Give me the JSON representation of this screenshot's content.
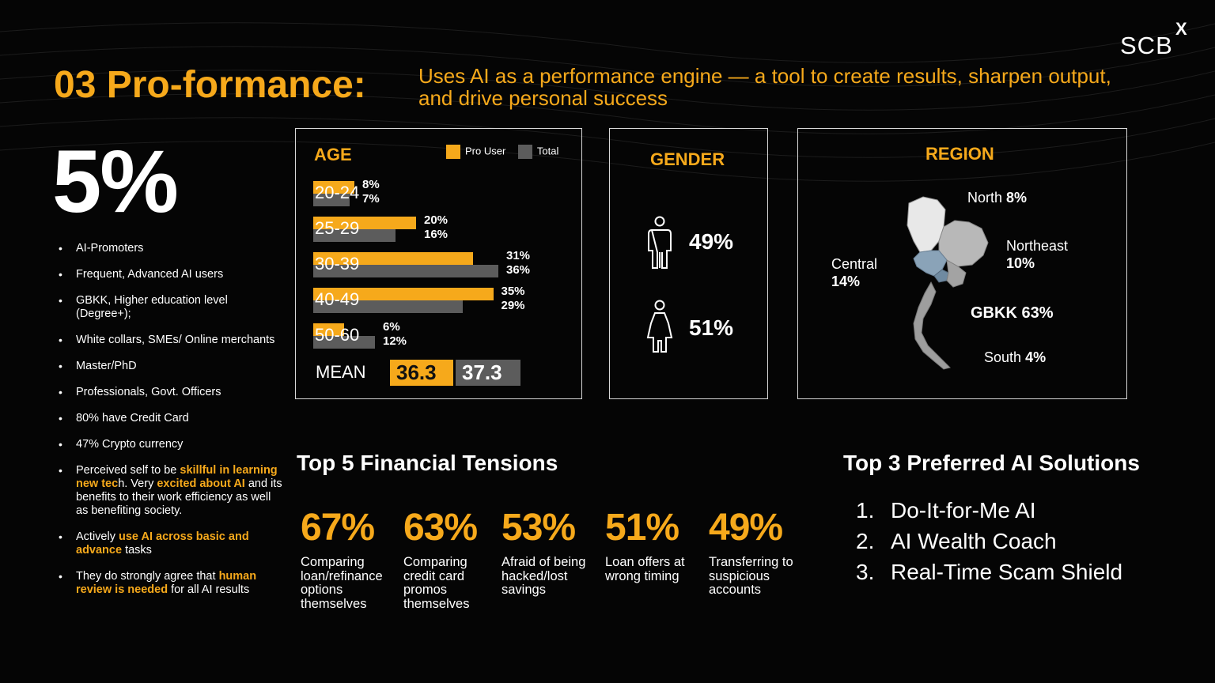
{
  "brand": {
    "logo_text": "SCB",
    "logo_mark": "X"
  },
  "header": {
    "title": "03 Pro-formance:",
    "subtitle": "Uses AI as a performance engine — a tool to create results, sharpen output, and drive personal success"
  },
  "share": "5%",
  "profile": {
    "bullets": [
      {
        "segments": [
          {
            "text": "AI-Promoters",
            "hl": false
          }
        ]
      },
      {
        "segments": [
          {
            "text": "Frequent, Advanced AI users",
            "hl": false
          }
        ]
      },
      {
        "segments": [
          {
            "text": "GBKK, Higher education level (Degree+);",
            "hl": false
          }
        ]
      },
      {
        "segments": [
          {
            "text": "White collars, SMEs/ Online merchants",
            "hl": false
          }
        ]
      },
      {
        "segments": [
          {
            "text": "Master/PhD",
            "hl": false
          }
        ]
      },
      {
        "segments": [
          {
            "text": "Professionals, Govt. Officers",
            "hl": false
          }
        ]
      },
      {
        "segments": [
          {
            "text": "80% have Credit Card",
            "hl": false
          }
        ]
      },
      {
        "segments": [
          {
            "text": "47% Crypto currency",
            "hl": false
          }
        ]
      },
      {
        "segments": [
          {
            "text": "Perceived self to be ",
            "hl": false
          },
          {
            "text": "skillful in learning new tec",
            "hl": true
          },
          {
            "text": "h. Very ",
            "hl": false
          },
          {
            "text": "excited about AI",
            "hl": true
          },
          {
            "text": " and its benefits to their work efficiency as well as benefiting society.",
            "hl": false
          }
        ]
      },
      {
        "segments": [
          {
            "text": "Actively ",
            "hl": false
          },
          {
            "text": "use AI across basic and advance",
            "hl": true
          },
          {
            "text": " tasks",
            "hl": false
          }
        ]
      },
      {
        "segments": [
          {
            "text": "They do strongly agree that ",
            "hl": false
          },
          {
            "text": "human review is needed",
            "hl": true
          },
          {
            "text": " for all AI results",
            "hl": false
          }
        ]
      }
    ]
  },
  "age": {
    "title": "AGE",
    "legend": {
      "pro": "Pro User",
      "total": "Total"
    },
    "mean_label": "MEAN",
    "mean_pro": "36.3",
    "mean_total": "37.3"
  },
  "chart_data": {
    "type": "bar",
    "orientation": "horizontal",
    "categories": [
      "20-24",
      "25-29",
      "30-39",
      "40-49",
      "50-60"
    ],
    "series": [
      {
        "name": "Pro User",
        "values": [
          8,
          20,
          31,
          35,
          6
        ],
        "color": "#f6a91b"
      },
      {
        "name": "Total",
        "values": [
          7,
          16,
          36,
          29,
          12
        ],
        "color": "#5c5c5c"
      }
    ],
    "value_labels": {
      "Pro User": [
        "8%",
        "20%",
        "31%",
        "35%",
        "6%"
      ],
      "Total": [
        "7%",
        "16%",
        "36%",
        "29%",
        "12%"
      ]
    },
    "unit": "%",
    "legend_position": "top-right",
    "grid": false
  },
  "gender": {
    "title": "GENDER",
    "male_pct": "49%",
    "female_pct": "51%",
    "male_icon": "male-person-icon",
    "female_icon": "female-person-icon"
  },
  "region": {
    "title": "REGION",
    "north": {
      "name": "North",
      "pct": "8%"
    },
    "northeast": {
      "name": "Northeast",
      "pct": "10%"
    },
    "central": {
      "name": "Central",
      "pct": "14%"
    },
    "gbkk": {
      "name": "GBKK",
      "pct": "63%"
    },
    "south": {
      "name": "South",
      "pct": "4%"
    }
  },
  "tensions": {
    "heading": "Top 5 Financial Tensions",
    "items": [
      {
        "pct": "67%",
        "desc": "Comparing loan/refinance options themselves"
      },
      {
        "pct": "63%",
        "desc": "Comparing credit card promos themselves"
      },
      {
        "pct": "53%",
        "desc": "Afraid of being hacked/lost savings"
      },
      {
        "pct": "51%",
        "desc": "Loan offers at wrong timing"
      },
      {
        "pct": "49%",
        "desc": "Transferring to suspicious accounts"
      }
    ]
  },
  "ai_solutions": {
    "heading": "Top 3 Preferred AI Solutions",
    "items": [
      {
        "num": "1.",
        "label": "Do-It-for-Me AI"
      },
      {
        "num": "2.",
        "label": "AI Wealth Coach"
      },
      {
        "num": "3.",
        "label": "Real-Time Scam Shield"
      }
    ]
  },
  "colors": {
    "accent": "#f6a91b",
    "total_bar": "#5c5c5c",
    "background": "#050505"
  }
}
